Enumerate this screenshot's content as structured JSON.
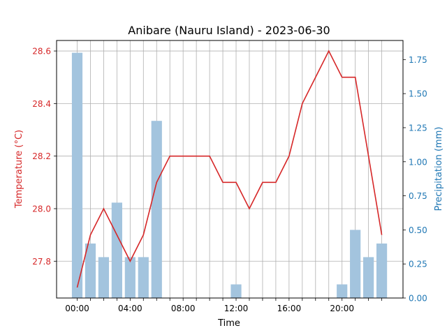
{
  "chart_data": {
    "type": "bar+line",
    "title": "Anibare (Nauru Island) - 2023-06-30",
    "xlabel": "Time",
    "ylabel_left": "Temperature (°C)",
    "ylabel_right": "Precipitation (mm)",
    "hours": [
      0,
      1,
      2,
      3,
      4,
      5,
      6,
      7,
      8,
      9,
      10,
      11,
      12,
      13,
      14,
      15,
      16,
      17,
      18,
      19,
      20,
      21,
      22,
      23
    ],
    "x_tick_labels": [
      "00:00",
      "04:00",
      "08:00",
      "12:00",
      "16:00",
      "20:00"
    ],
    "x_tick_hours": [
      0,
      4,
      8,
      12,
      16,
      20
    ],
    "grid": true,
    "temperature": {
      "name": "Temperature",
      "color": "#d62728",
      "values": [
        27.7,
        27.9,
        28.0,
        27.9,
        27.8,
        27.9,
        28.1,
        28.2,
        28.2,
        28.2,
        28.2,
        28.1,
        28.1,
        28.0,
        28.1,
        28.1,
        28.2,
        28.4,
        28.5,
        28.6,
        28.5,
        28.5,
        28.2,
        27.9
      ],
      "ylim": [
        27.66,
        28.64
      ],
      "ticks": [
        27.8,
        28.0,
        28.2,
        28.4,
        28.6
      ],
      "tick_labels": [
        "27.8",
        "28.0",
        "28.2",
        "28.4",
        "28.6"
      ]
    },
    "precipitation": {
      "name": "Precipitation",
      "color": "#1f77b4",
      "bar_color": "#a3c4de",
      "values": [
        1.8,
        0.4,
        0.3,
        0.7,
        0.3,
        0.3,
        1.3,
        0,
        0,
        0,
        0,
        0,
        0.1,
        0,
        0,
        0,
        0,
        0,
        0,
        0,
        0.1,
        0.5,
        0.3,
        0.4
      ],
      "ylim": [
        0,
        1.89
      ],
      "ticks": [
        0,
        0.25,
        0.5,
        0.75,
        1.0,
        1.25,
        1.5,
        1.75
      ],
      "tick_labels": [
        "0.00",
        "0.25",
        "0.50",
        "0.75",
        "1.00",
        "1.25",
        "1.50",
        "1.75"
      ]
    }
  }
}
